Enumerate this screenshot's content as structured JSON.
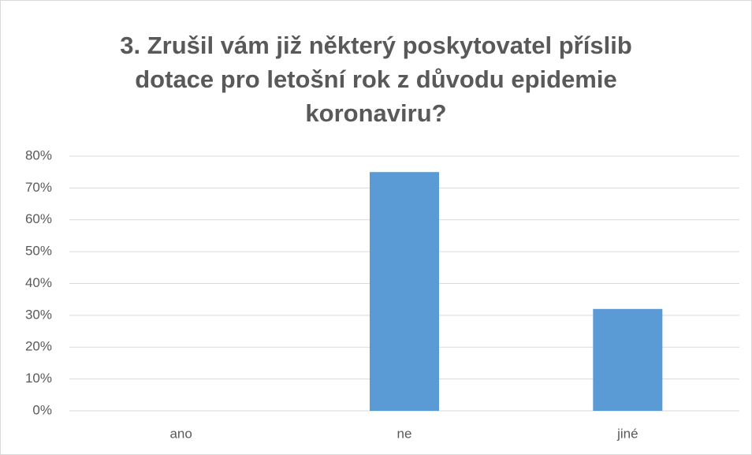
{
  "chart_data": {
    "type": "bar",
    "title": [
      "3. Zrušil vám již některý poskytovatel příslib",
      "dotace pro letošní rok z důvodu epidemie",
      "koronaviru?"
    ],
    "categories": [
      "ano",
      "ne",
      "jiné"
    ],
    "values": [
      0,
      75,
      32
    ],
    "color": "#5b9bd5",
    "ylim": [
      0,
      80
    ],
    "yticks": [
      {
        "value": 0,
        "label": "0%"
      },
      {
        "value": 10,
        "label": "10%"
      },
      {
        "value": 20,
        "label": "20%"
      },
      {
        "value": 30,
        "label": "30%"
      },
      {
        "value": 40,
        "label": "40%"
      },
      {
        "value": 50,
        "label": "50%"
      },
      {
        "value": 60,
        "label": "60%"
      },
      {
        "value": 70,
        "label": "70%"
      },
      {
        "value": 80,
        "label": "80%"
      }
    ],
    "grid": true
  }
}
